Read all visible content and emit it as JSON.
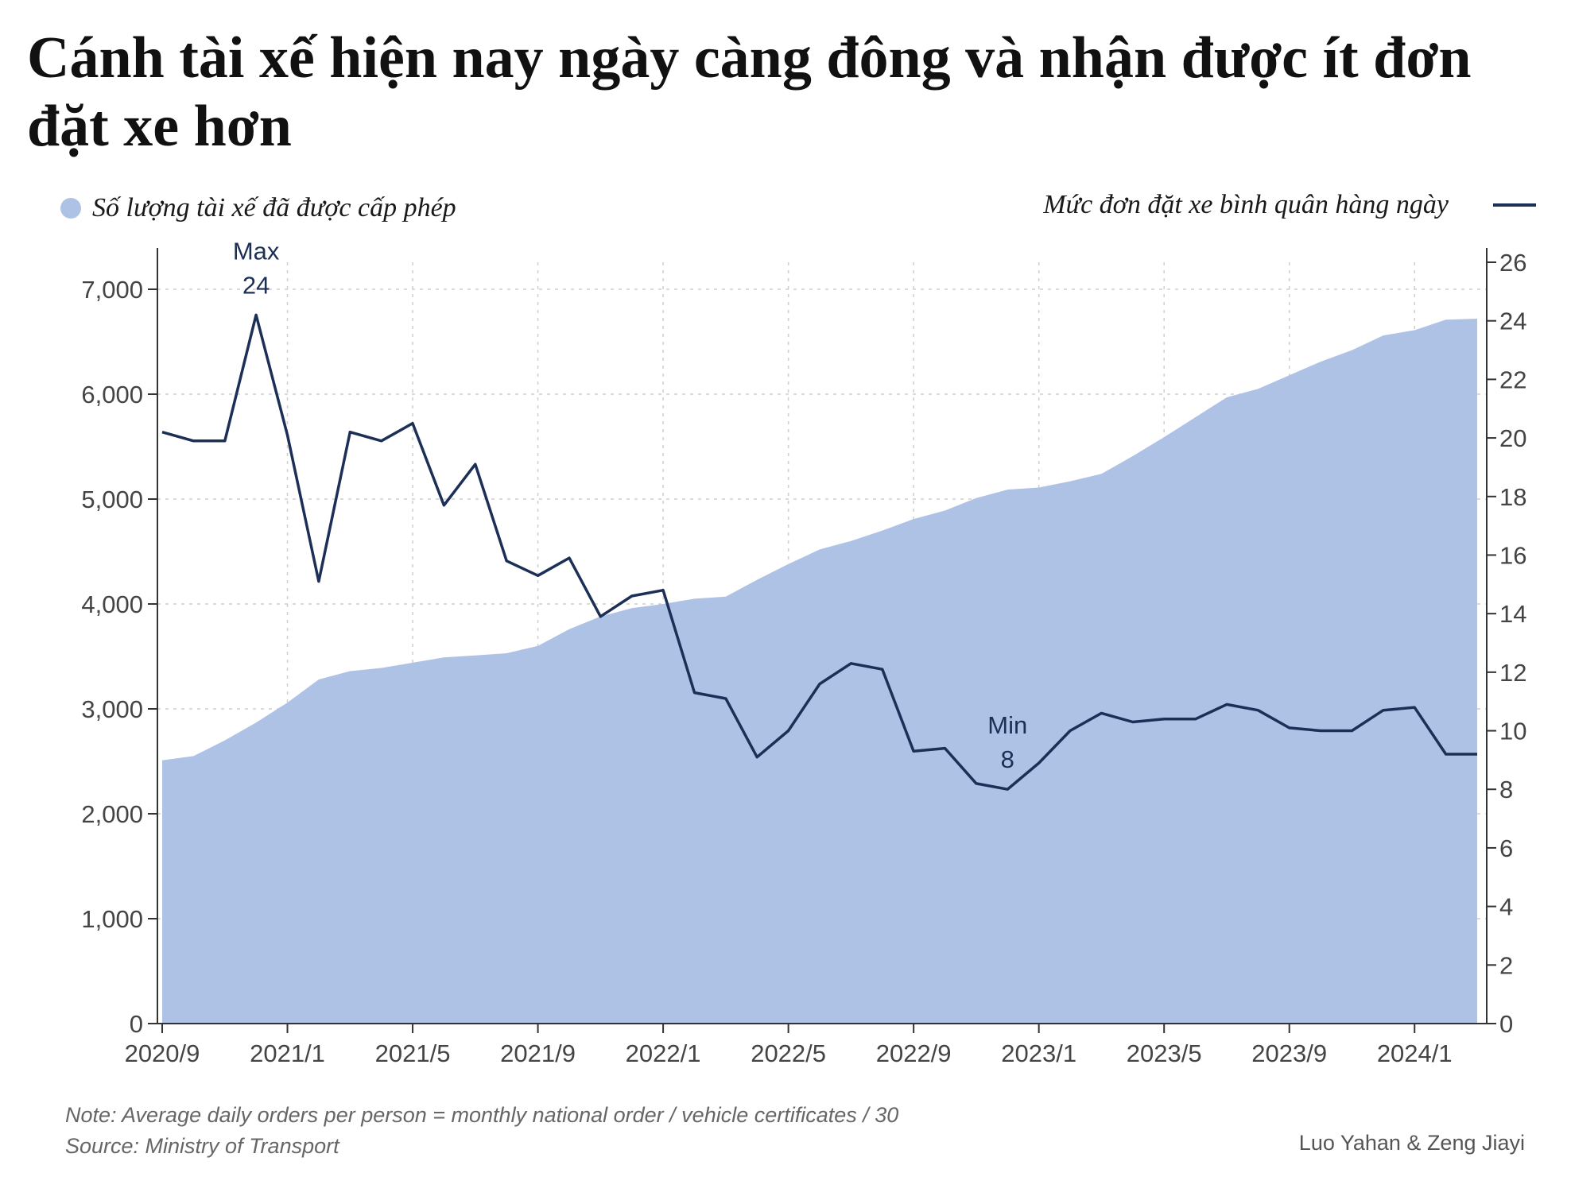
{
  "title": "Cánh tài xế hiện nay ngày càng đông và nhận được ít đơn đặt xe hơn",
  "legend": {
    "area_label": "Số lượng tài xế đã được cấp phép",
    "line_label": "Mức đơn đặt xe bình quân hàng ngày"
  },
  "note": "Note: Average daily orders per person = monthly national order / vehicle certificates / 30",
  "source": "Source: Ministry of Transport",
  "credit": "Luo Yahan & Zeng Jiayi",
  "colors": {
    "area": "#aec2e6",
    "line": "#1c2f57",
    "grid": "#cfcfcf",
    "axis": "#333333",
    "text": "#444444"
  },
  "chart_data": {
    "type": "area+line",
    "x": [
      "2020/9",
      "2020/10",
      "2020/11",
      "2020/12",
      "2021/1",
      "2021/2",
      "2021/3",
      "2021/4",
      "2021/5",
      "2021/6",
      "2021/7",
      "2021/8",
      "2021/9",
      "2021/10",
      "2021/11",
      "2021/12",
      "2022/1",
      "2022/2",
      "2022/3",
      "2022/4",
      "2022/5",
      "2022/6",
      "2022/7",
      "2022/8",
      "2022/9",
      "2022/10",
      "2022/11",
      "2022/12",
      "2023/1",
      "2023/2",
      "2023/3",
      "2023/4",
      "2023/5",
      "2023/6",
      "2023/7",
      "2023/8",
      "2023/9",
      "2023/10",
      "2023/11",
      "2023/12",
      "2024/1",
      "2024/2",
      "2024/3"
    ],
    "x_tick_labels": [
      "2020/9",
      "2021/1",
      "2021/5",
      "2021/9",
      "2022/1",
      "2022/5",
      "2022/9",
      "2023/1",
      "2023/5",
      "2023/9",
      "2024/1"
    ],
    "series": [
      {
        "name": "Số lượng tài xế đã được cấp phép",
        "type": "area",
        "axis": "left",
        "values": [
          2510,
          2550,
          2700,
          2870,
          3060,
          3280,
          3360,
          3390,
          3440,
          3490,
          3510,
          3530,
          3600,
          3760,
          3880,
          3960,
          4000,
          4050,
          4070,
          4230,
          4380,
          4520,
          4600,
          4700,
          4810,
          4890,
          5010,
          5090,
          5110,
          5170,
          5240,
          5410,
          5590,
          5780,
          5970,
          6050,
          6180,
          6310,
          6420,
          6560,
          6610,
          6710,
          6720
        ]
      },
      {
        "name": "Mức đơn đặt xe bình quân hàng ngày",
        "type": "line",
        "axis": "right",
        "values": [
          20.2,
          19.9,
          19.9,
          24.2,
          20.1,
          15.1,
          20.2,
          19.9,
          20.5,
          17.7,
          19.1,
          15.8,
          15.3,
          15.9,
          13.9,
          14.6,
          14.8,
          11.3,
          11.1,
          9.1,
          10.0,
          11.6,
          12.3,
          12.1,
          9.3,
          9.4,
          8.2,
          8.0,
          8.9,
          10.0,
          10.6,
          10.3,
          10.4,
          10.4,
          10.9,
          10.7,
          10.1,
          10.0,
          10.0,
          10.7,
          10.8,
          9.2,
          9.2
        ]
      }
    ],
    "y_left": {
      "min": 0,
      "max": 7000,
      "ticks": [
        0,
        1000,
        2000,
        3000,
        4000,
        5000,
        6000,
        7000
      ],
      "tick_labels": [
        "0",
        "1,000",
        "2,000",
        "3,000",
        "4,000",
        "5,000",
        "6,000",
        "7,000"
      ]
    },
    "y_right": {
      "min": 0,
      "max": 26,
      "ticks": [
        0,
        2,
        4,
        6,
        8,
        10,
        12,
        14,
        16,
        18,
        20,
        22,
        24,
        26
      ],
      "tick_labels": [
        "0",
        "2",
        "4",
        "6",
        "8",
        "10",
        "12",
        "14",
        "16",
        "18",
        "20",
        "22",
        "24",
        "26"
      ]
    },
    "grid": true,
    "annotations": [
      {
        "label": "Max",
        "value_label": "24",
        "x": "2020/12",
        "series": "Mức đơn đặt xe bình quân hàng ngày"
      },
      {
        "label": "Min",
        "value_label": "8",
        "x": "2022/12",
        "series": "Mức đơn đặt xe bình quân hàng ngày"
      }
    ],
    "legend_position": "top"
  }
}
